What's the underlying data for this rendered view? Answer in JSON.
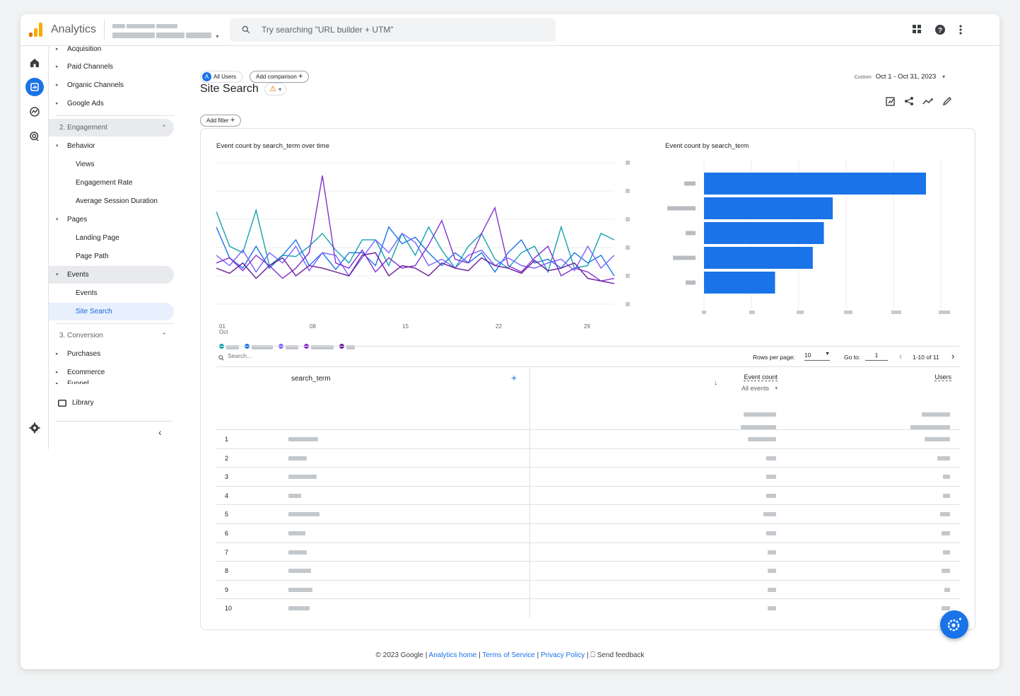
{
  "app": {
    "name": "Analytics"
  },
  "search": {
    "placeholder": "Try searching \"URL builder + UTM\""
  },
  "nav": {
    "items": [
      {
        "label": "Acquisition",
        "level": 1
      },
      {
        "label": "Paid Channels",
        "level": 1
      },
      {
        "label": "Organic Channels",
        "level": 1
      },
      {
        "label": "Google Ads",
        "level": 1
      },
      {
        "label": "2. Engagement",
        "level": 0
      },
      {
        "label": "Behavior",
        "level": 1
      },
      {
        "label": "Views",
        "level": 2
      },
      {
        "label": "Engagement Rate",
        "level": 2
      },
      {
        "label": "Average Session Duration",
        "level": 2
      },
      {
        "label": "Pages",
        "level": 1
      },
      {
        "label": "Landing Page",
        "level": 2
      },
      {
        "label": "Page Path",
        "level": 2
      },
      {
        "label": "Events",
        "level": 1
      },
      {
        "label": "Events",
        "level": 2
      },
      {
        "label": "Site Search",
        "level": 2
      },
      {
        "label": "3. Conversion",
        "level": 0
      },
      {
        "label": "Purchases",
        "level": 1
      },
      {
        "label": "Ecommerce",
        "level": 1
      },
      {
        "label": "Funnel",
        "level": 1
      }
    ],
    "library": "Library"
  },
  "filters": {
    "segment": "All Users",
    "segment_letter": "A",
    "add_comparison": "Add comparison",
    "add_filter": "Add filter",
    "date_label": "Custom",
    "date_range": "Oct 1 - Oct 31, 2023"
  },
  "page": {
    "title": "Site Search"
  },
  "line_chart": {
    "title": "Event count by search_term over time",
    "x_ticks": [
      "01",
      "08",
      "15",
      "22",
      "29"
    ],
    "x_sub": "Oct"
  },
  "bar_chart": {
    "title": "Event count by search_term"
  },
  "table": {
    "search_placeholder": "Search...",
    "rows_per_page_label": "Rows per page:",
    "rows_per_page": "10",
    "goto_label": "Go to:",
    "goto_value": "1",
    "pagination": "1-10 of 11",
    "col_dim": "search_term",
    "col_metric1": "Event count",
    "col_metric1_sub": "All events",
    "col_metric2": "Users",
    "row_indexes": [
      "1",
      "2",
      "3",
      "4",
      "5",
      "6",
      "7",
      "8",
      "9",
      "10"
    ]
  },
  "footer": {
    "copyright": "© 2023 Google |",
    "analytics_home": "Analytics home",
    "terms": "Terms of Service",
    "privacy": "Privacy Policy",
    "feedback": "Send feedback"
  },
  "chart_data": [
    {
      "type": "line",
      "title": "Event count by search_term over time",
      "x": [
        "01",
        "02",
        "03",
        "04",
        "05",
        "06",
        "07",
        "08",
        "09",
        "10",
        "11",
        "12",
        "13",
        "14",
        "15",
        "16",
        "17",
        "18",
        "19",
        "20",
        "21",
        "22",
        "23",
        "24",
        "25",
        "26",
        "27",
        "28",
        "29",
        "30",
        "31"
      ],
      "series": [
        {
          "color": "#12a4af",
          "values": [
            72,
            45,
            40,
            73,
            30,
            38,
            37,
            45,
            55,
            42,
            32,
            50,
            50,
            30,
            55,
            38,
            60,
            42,
            28,
            45,
            55,
            35,
            28,
            40,
            45,
            25,
            60,
            28,
            30,
            55,
            50
          ]
        },
        {
          "color": "#1a73e8",
          "values": [
            60,
            36,
            28,
            45,
            28,
            38,
            50,
            30,
            40,
            27,
            40,
            40,
            30,
            60,
            47,
            52,
            40,
            30,
            40,
            32,
            40,
            25,
            40,
            50,
            32,
            35,
            28,
            40,
            32,
            38,
            22
          ]
        },
        {
          "color": "#7b61ff",
          "values": [
            38,
            30,
            42,
            25,
            40,
            32,
            45,
            26,
            40,
            38,
            22,
            36,
            50,
            40,
            55,
            48,
            30,
            35,
            28,
            38,
            42,
            30,
            36,
            30,
            28,
            32,
            35,
            26,
            45,
            28,
            38
          ]
        },
        {
          "color": "#8430ce",
          "values": [
            32,
            36,
            26,
            38,
            30,
            20,
            28,
            40,
            100,
            32,
            28,
            42,
            25,
            36,
            28,
            30,
            46,
            65,
            35,
            32,
            55,
            75,
            30,
            25,
            36,
            45,
            22,
            28,
            25,
            18,
            20
          ]
        },
        {
          "color": "#6a1b9a",
          "values": [
            28,
            24,
            32,
            20,
            30,
            36,
            22,
            30,
            28,
            25,
            22,
            38,
            40,
            22,
            30,
            28,
            22,
            32,
            28,
            26,
            36,
            30,
            28,
            24,
            34,
            26,
            28,
            32,
            20,
            18,
            16
          ]
        }
      ],
      "ylim": [
        0,
        110
      ]
    },
    {
      "type": "bar",
      "title": "Event count by search_term",
      "values": [
        100,
        58,
        54,
        49,
        32
      ]
    }
  ]
}
